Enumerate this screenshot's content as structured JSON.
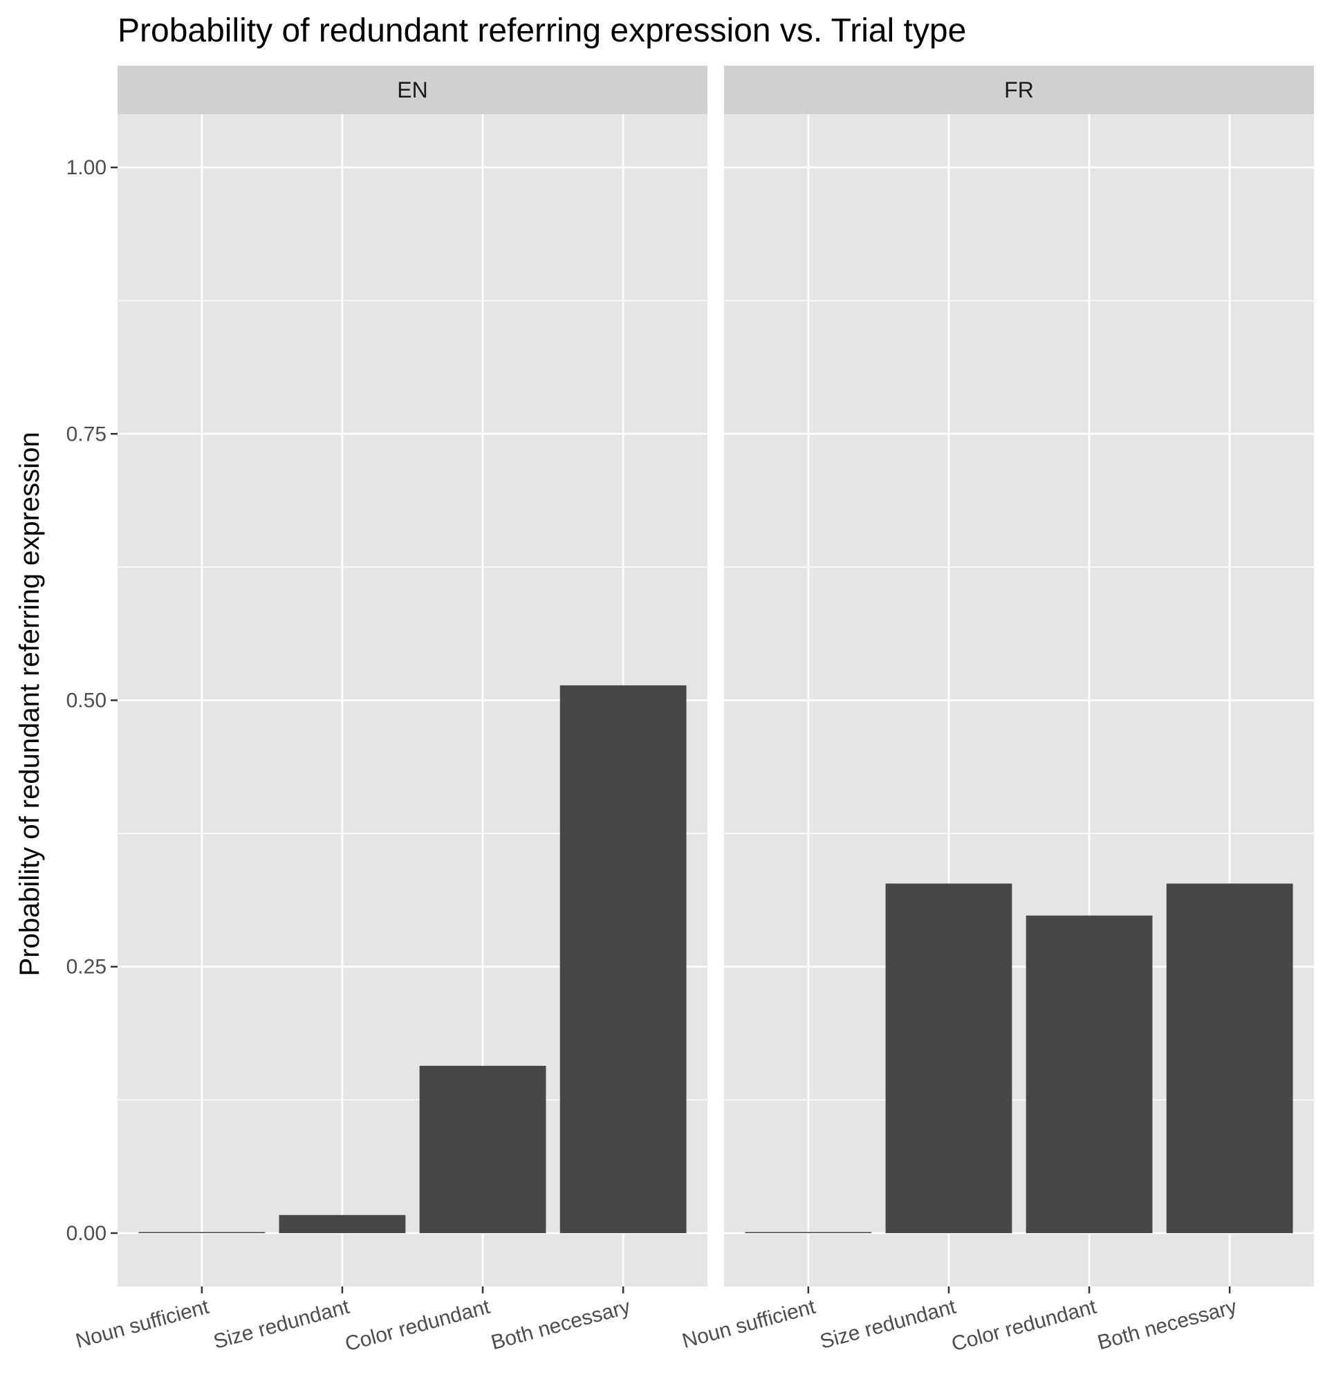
{
  "chart_data": {
    "type": "bar",
    "title": "Probability of redundant referring expression vs. Trial type",
    "xlabel": "",
    "ylabel": "Probability of redundant referring expression",
    "ylim": [
      -0.05,
      1.05
    ],
    "yticks": [
      "0.00",
      "0.25",
      "0.50",
      "0.75",
      "1.00"
    ],
    "ytick_values": [
      0,
      0.25,
      0.5,
      0.75,
      1.0
    ],
    "categories": [
      "Noun sufficient",
      "Size redundant",
      "Color redundant",
      "Both necessary"
    ],
    "grid": true,
    "panels": [
      {
        "name": "EN",
        "values": [
          0.001,
          0.017,
          0.157,
          0.514
        ]
      },
      {
        "name": "FR",
        "values": [
          0.001,
          0.328,
          0.298,
          0.328
        ]
      }
    ],
    "colors": {
      "bar": "#474747",
      "panel_bg": "#e5e5e5",
      "strip_bg": "#d0d0d0",
      "grid": "#ffffff"
    }
  }
}
